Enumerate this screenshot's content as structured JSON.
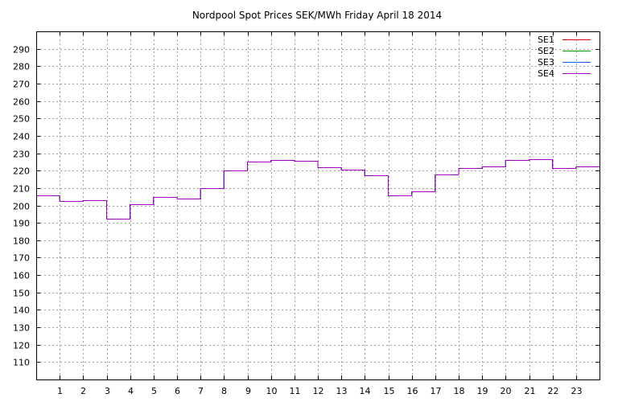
{
  "chart_data": {
    "type": "line",
    "step": true,
    "title": "Nordpool Spot Prices SEK/MWh Friday April 18 2014",
    "xlabel": "",
    "ylabel": "",
    "xlim": [
      0,
      24
    ],
    "ylim": [
      100,
      300
    ],
    "grid": true,
    "legend_position": "top-right",
    "x_ticks": [
      "1",
      "2",
      "3",
      "4",
      "5",
      "6",
      "7",
      "8",
      "9",
      "10",
      "11",
      "12",
      "13",
      "14",
      "15",
      "16",
      "17",
      "18",
      "19",
      "20",
      "21",
      "22",
      "23"
    ],
    "y_ticks": [
      "110",
      "120",
      "130",
      "140",
      "150",
      "160",
      "170",
      "180",
      "190",
      "200",
      "210",
      "220",
      "230",
      "240",
      "250",
      "260",
      "270",
      "280",
      "290"
    ],
    "hours": [
      0,
      1,
      2,
      3,
      4,
      5,
      6,
      7,
      8,
      9,
      10,
      11,
      12,
      13,
      14,
      15,
      16,
      17,
      18,
      19,
      20,
      21,
      22,
      23
    ],
    "series": [
      {
        "name": "SE1",
        "color": "#e00000",
        "values": [
          206,
          202.5,
          203,
          192.5,
          200.5,
          205,
          204,
          210,
          220,
          225,
          226,
          225.5,
          222,
          220.5,
          217.5,
          206,
          208,
          218,
          221.5,
          222.5,
          226,
          226.5,
          221.5,
          222.5
        ]
      },
      {
        "name": "SE2",
        "color": "#00a000",
        "values": [
          206,
          202.5,
          203,
          192.5,
          200.5,
          205,
          204,
          210,
          220,
          225,
          226,
          225.5,
          222,
          220.5,
          217.5,
          206,
          208,
          218,
          221.5,
          222.5,
          226,
          226.5,
          221.5,
          222.5
        ]
      },
      {
        "name": "SE3",
        "color": "#1060e0",
        "values": [
          206,
          202.5,
          203,
          192.5,
          200.5,
          205,
          204,
          210,
          220,
          225,
          226,
          225.5,
          222,
          220.5,
          217.5,
          206,
          208,
          218,
          221.5,
          222.5,
          226,
          226.5,
          221.5,
          222.5
        ]
      },
      {
        "name": "SE4",
        "color": "#a000c0",
        "values": [
          206,
          202.5,
          203,
          192.5,
          200.5,
          205,
          204,
          210,
          220,
          225,
          226,
          225.5,
          222,
          220.5,
          217.5,
          206,
          208,
          218,
          221.5,
          222.5,
          226,
          226.5,
          221.5,
          222.5
        ]
      }
    ]
  }
}
